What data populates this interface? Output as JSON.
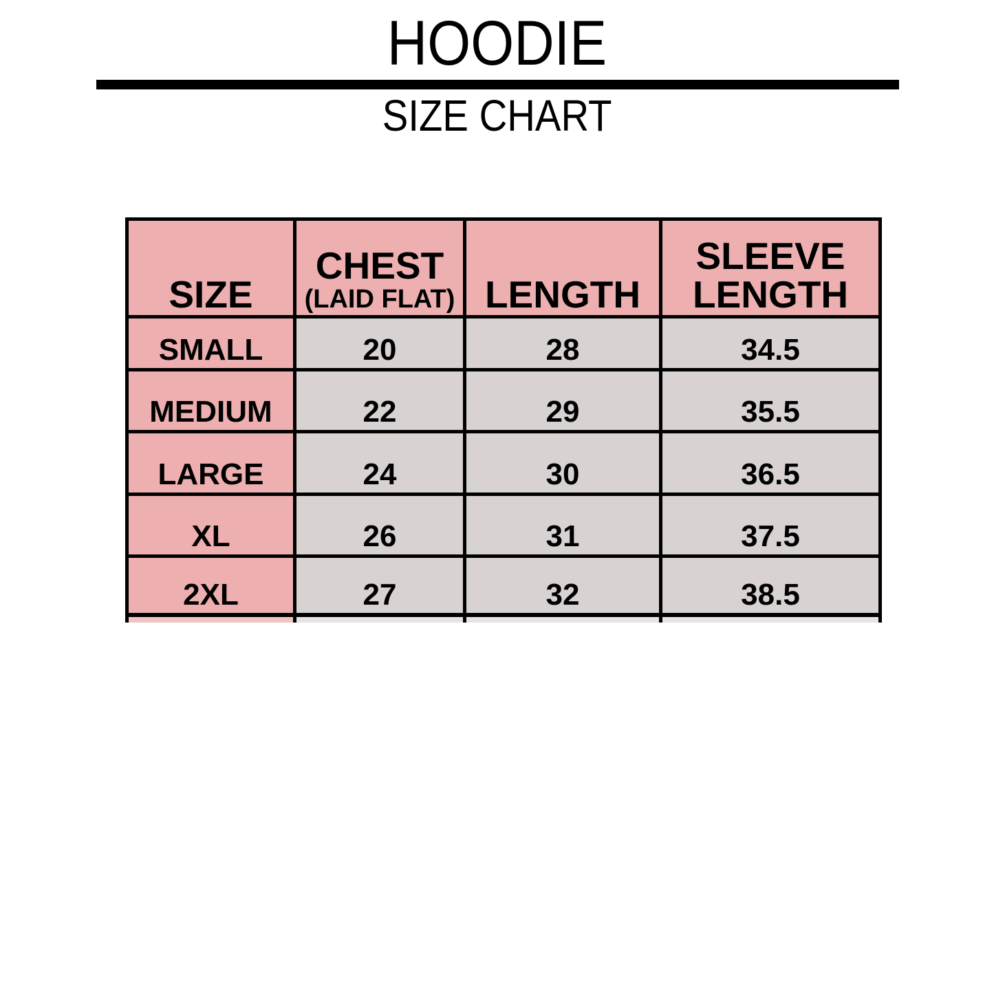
{
  "page": {
    "title": "HOODIE",
    "subtitle": "SIZE CHART"
  },
  "colors": {
    "header_pink": "#edafaf",
    "cell_gray": "#d8d2d2",
    "border_black": "#000000"
  },
  "table": {
    "headers": {
      "size": "SIZE",
      "chest_main": "CHEST",
      "chest_sub": "(LAID FLAT)",
      "length": "LENGTH",
      "sleeve_line1": "SLEEVE",
      "sleeve_line2": "LENGTH"
    },
    "rows": [
      {
        "size": "SMALL",
        "chest": "20",
        "length": "28",
        "sleeve": "34.5"
      },
      {
        "size": "MEDIUM",
        "chest": "22",
        "length": "29",
        "sleeve": "35.5"
      },
      {
        "size": "LARGE",
        "chest": "24",
        "length": "30",
        "sleeve": "36.5"
      },
      {
        "size": "XL",
        "chest": "26",
        "length": "31",
        "sleeve": "37.5"
      },
      {
        "size": "2XL",
        "chest": "27",
        "length": "32",
        "sleeve": "38.5"
      }
    ]
  },
  "chart_data": {
    "type": "table",
    "title": "HOODIE SIZE CHART",
    "columns": [
      "SIZE",
      "CHEST (LAID FLAT)",
      "LENGTH",
      "SLEEVE LENGTH"
    ],
    "rows": [
      [
        "SMALL",
        20,
        28,
        34.5
      ],
      [
        "MEDIUM",
        22,
        29,
        35.5
      ],
      [
        "LARGE",
        24,
        30,
        36.5
      ],
      [
        "XL",
        26,
        31,
        37.5
      ],
      [
        "2XL",
        27,
        32,
        38.5
      ]
    ]
  }
}
